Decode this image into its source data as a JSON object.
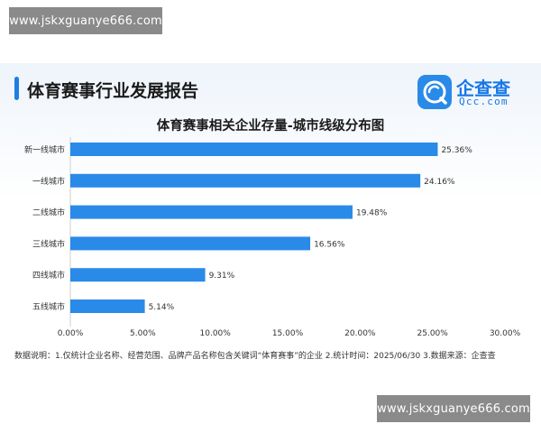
{
  "watermark": {
    "top_text": "www.jskxguanye666.com",
    "bottom_text": "www.jskxguanye666.com"
  },
  "header": {
    "report_title": "体育赛事行业发展报告",
    "logo_cn": "企查查",
    "logo_en": "Qcc.com"
  },
  "colors": {
    "accent": "#1f7fe0",
    "bar": "#2a8ae8",
    "logo": "#2a8ae8"
  },
  "chart_data": {
    "type": "bar",
    "orientation": "horizontal",
    "title": "体育赛事相关企业存量-城市线级分布图",
    "categories": [
      "新一线城市",
      "一线城市",
      "二线城市",
      "三线城市",
      "四线城市",
      "五线城市"
    ],
    "values": [
      25.36,
      24.16,
      19.48,
      16.56,
      9.31,
      5.14
    ],
    "data_labels": [
      "25.36%",
      "24.16%",
      "19.48%",
      "16.56%",
      "9.31%",
      "5.14%"
    ],
    "xlim": [
      0,
      30
    ],
    "xticks": [
      0,
      5,
      10,
      15,
      20,
      25,
      30
    ],
    "xtick_labels": [
      "0.00%",
      "5.00%",
      "10.00%",
      "15.00%",
      "20.00%",
      "25.00%",
      "30.00%"
    ],
    "xlabel": "",
    "ylabel": "",
    "grid": false
  },
  "footnote": "数据说明：1.仅统计企业名称、经营范围、品牌产品名称包含关键词“体育赛事”的企业  2.统计时间：2025/06/30  3.数据来源：企查查"
}
